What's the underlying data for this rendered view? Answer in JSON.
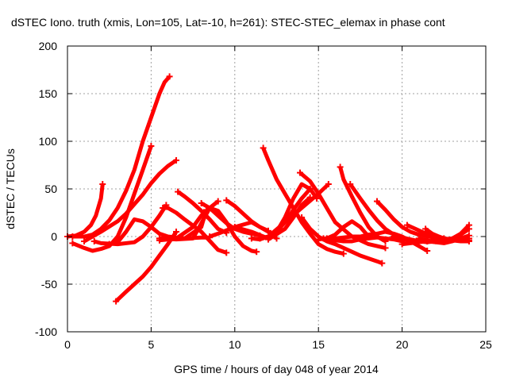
{
  "chart_data": {
    "type": "line",
    "title": "dSTEC Iono. truth (xmis, Lon=105, Lat=-10, h=261): STEC-STEC_elemax in phase cont",
    "xlabel": "GPS time / hours of day 048 of year 2014",
    "ylabel": "dSTEC  / TECUs",
    "xlim": [
      0,
      25
    ],
    "ylim": [
      -100,
      200
    ],
    "xticks": [
      "0",
      "5",
      "10",
      "15",
      "20",
      "25"
    ],
    "yticks": [
      "-100",
      "-50",
      "0",
      "50",
      "100",
      "150",
      "200"
    ],
    "grid": true,
    "line_color": "#ff0000",
    "series": [
      {
        "x": [
          0.0,
          0.5,
          1.0,
          1.4,
          1.7,
          2.0,
          2.1
        ],
        "y": [
          0,
          1,
          5,
          12,
          22,
          40,
          55
        ]
      },
      {
        "x": [
          0.3,
          1.0,
          1.5,
          2.0,
          2.5,
          3.0,
          3.5,
          4.0,
          4.5,
          5.0,
          5.5,
          5.8,
          6.1
        ],
        "y": [
          0,
          0,
          2,
          8,
          17,
          30,
          48,
          70,
          100,
          125,
          150,
          162,
          168
        ]
      },
      {
        "x": [
          0.3,
          1.0,
          1.5,
          2.0,
          2.5,
          3.0,
          3.5,
          4.0,
          4.5,
          5.0
        ],
        "y": [
          -7,
          -12,
          -15,
          -13,
          -10,
          0,
          20,
          45,
          70,
          95
        ]
      },
      {
        "x": [
          1.0,
          2.0,
          3.0,
          3.5,
          4.0,
          4.5,
          5.0,
          5.5,
          6.0,
          6.5
        ],
        "y": [
          -5,
          5,
          16,
          24,
          34,
          44,
          56,
          66,
          74,
          80
        ]
      },
      {
        "x": [
          1.6,
          2.0,
          3.0,
          4.0,
          4.5,
          5.0,
          5.5,
          5.9
        ],
        "y": [
          -5,
          -7,
          -8,
          -6,
          0,
          10,
          22,
          33
        ]
      },
      {
        "x": [
          2.9,
          3.5,
          4.0,
          4.5,
          5.0,
          5.5,
          6.0,
          6.5
        ],
        "y": [
          -68,
          -58,
          -50,
          -42,
          -32,
          -20,
          -8,
          5
        ]
      },
      {
        "x": [
          2.5,
          3.0,
          3.5,
          4.0,
          4.5,
          5.0,
          5.5,
          6.0,
          7.0,
          8.0,
          8.5
        ],
        "y": [
          -8,
          -6,
          5,
          18,
          16,
          10,
          3,
          0,
          -2,
          -1,
          -1
        ]
      },
      {
        "x": [
          5.7,
          6.0,
          6.5,
          7.0,
          8.0,
          9.0,
          9.5
        ],
        "y": [
          30,
          30,
          25,
          18,
          5,
          -14,
          -17
        ]
      },
      {
        "x": [
          6.6,
          7.0,
          7.5,
          8.0,
          8.5,
          9.0,
          9.5
        ],
        "y": [
          47,
          42,
          35,
          27,
          18,
          8,
          4
        ]
      },
      {
        "x": [
          5.5,
          6.0,
          7.0,
          8.0,
          8.3
        ],
        "y": [
          -4,
          -3,
          -2,
          10,
          28
        ]
      },
      {
        "x": [
          5.5,
          6.5,
          7.5,
          8.0,
          8.5,
          9.0,
          9.5,
          10.0,
          10.5,
          11.0,
          11.3
        ],
        "y": [
          -2,
          -2,
          10,
          22,
          30,
          27,
          15,
          0,
          -10,
          -15,
          -16
        ]
      },
      {
        "x": [
          5.5,
          6.5,
          7.5,
          8.5,
          9.0
        ],
        "y": [
          -2,
          -3,
          -2,
          30,
          37
        ]
      },
      {
        "x": [
          8.0,
          8.5,
          9.0,
          9.5,
          10.0,
          10.5,
          11.0,
          11.5
        ],
        "y": [
          35,
          30,
          22,
          14,
          8,
          5,
          3,
          1
        ]
      },
      {
        "x": [
          9.5,
          10.0,
          10.5,
          11.0,
          11.5,
          12.0
        ],
        "y": [
          38,
          32,
          24,
          16,
          10,
          6
        ]
      },
      {
        "x": [
          8.5,
          9.0,
          10.0,
          11.0,
          12.0,
          12.5
        ],
        "y": [
          0,
          3,
          10,
          15,
          5,
          -2
        ]
      },
      {
        "x": [
          11.7,
          12.0,
          12.5,
          13.0,
          13.5,
          14.0,
          14.5,
          15.0,
          15.5,
          16.0,
          16.5
        ],
        "y": [
          93,
          80,
          60,
          45,
          30,
          15,
          3,
          -8,
          -13,
          -16,
          -18
        ]
      },
      {
        "x": [
          10.0,
          11.0,
          12.0,
          12.5,
          13.0,
          13.5,
          14.0,
          14.5,
          14.9
        ],
        "y": [
          10,
          5,
          -2,
          5,
          20,
          40,
          55,
          50,
          40
        ]
      },
      {
        "x": [
          11.5,
          12.0,
          12.5,
          13.0,
          13.5,
          14.0,
          14.5
        ],
        "y": [
          -2,
          0,
          5,
          15,
          28,
          40,
          50
        ]
      },
      {
        "x": [
          11.0,
          11.5,
          12.0,
          13.0,
          14.0,
          15.0,
          15.6
        ],
        "y": [
          -2,
          -3,
          0,
          15,
          30,
          45,
          55
        ]
      },
      {
        "x": [
          12.0,
          13.0,
          13.5,
          14.0,
          14.5
        ],
        "y": [
          -3,
          8,
          20,
          33,
          41
        ]
      },
      {
        "x": [
          13.9,
          14.5,
          15.0,
          15.5,
          16.0,
          17.0,
          18.0,
          19.0
        ],
        "y": [
          67,
          58,
          45,
          30,
          15,
          0,
          -8,
          -12
        ]
      },
      {
        "x": [
          14.0,
          14.5,
          15.0,
          15.5,
          16.0,
          16.5,
          17.0,
          17.5,
          18.0,
          18.5,
          18.8
        ],
        "y": [
          20,
          8,
          0,
          -5,
          -8,
          -12,
          -16,
          -20,
          -23,
          -26,
          -28
        ]
      },
      {
        "x": [
          15.5,
          16.0,
          16.5,
          17.0,
          17.5,
          18.0,
          18.5,
          19.0,
          19.5,
          20.0,
          20.5,
          21.0,
          21.5
        ],
        "y": [
          -2,
          -2,
          -1,
          0,
          0,
          2,
          3,
          5,
          3,
          0,
          -5,
          -10,
          -15
        ]
      },
      {
        "x": [
          15.3,
          15.5,
          16.0,
          16.5,
          17.0,
          17.5,
          18.0,
          18.5,
          19.0,
          19.5,
          20.0
        ],
        "y": [
          -2,
          -3,
          -4,
          -5,
          -5,
          -3,
          -2,
          -1,
          -2,
          -3,
          -5
        ]
      },
      {
        "x": [
          16.3,
          16.5,
          17.0,
          17.5,
          18.0,
          18.5,
          19.0
        ],
        "y": [
          73,
          60,
          42,
          25,
          10,
          0,
          -5
        ]
      },
      {
        "x": [
          16.9,
          17.5,
          18.0,
          18.5,
          19.0,
          19.5,
          20.0,
          20.5
        ],
        "y": [
          55,
          40,
          28,
          17,
          8,
          2,
          -2,
          -5
        ]
      },
      {
        "x": [
          15.0,
          15.5,
          16.0,
          16.5,
          17.0,
          17.5,
          18.0
        ],
        "y": [
          -3,
          -2,
          2,
          10,
          16,
          10,
          0
        ]
      },
      {
        "x": [
          18.5,
          19.0,
          19.5,
          20.0,
          20.5,
          21.0,
          21.5,
          22.0,
          22.5
        ],
        "y": [
          37,
          28,
          18,
          10,
          5,
          2,
          0,
          -1,
          -2
        ]
      },
      {
        "x": [
          20.3,
          20.8,
          21.3,
          22.0,
          22.5,
          23.0,
          23.5,
          24.0
        ],
        "y": [
          12,
          8,
          4,
          0,
          -2,
          -3,
          -4,
          -4
        ]
      },
      {
        "x": [
          21.0,
          21.5,
          22.0,
          22.5,
          23.0,
          23.5,
          24.0
        ],
        "y": [
          -2,
          -4,
          -6,
          -7,
          -5,
          -2,
          1
        ]
      },
      {
        "x": [
          21.4,
          21.8,
          22.2,
          22.5,
          23.0,
          23.5,
          24.0
        ],
        "y": [
          8,
          3,
          0,
          -2,
          -4,
          -5,
          -5
        ]
      },
      {
        "x": [
          21.5,
          22.0,
          22.5,
          23.0,
          23.5,
          24.0
        ],
        "y": [
          -5,
          -6,
          -5,
          -2,
          2,
          8
        ]
      },
      {
        "x": [
          20.0,
          21.0,
          22.0,
          23.0,
          23.5,
          24.0
        ],
        "y": [
          -8,
          -6,
          -4,
          -2,
          3,
          12
        ]
      },
      {
        "x": [
          19.5,
          20.0,
          20.5,
          21.0,
          21.5,
          22.0,
          22.5,
          23.0,
          24.0
        ],
        "y": [
          0,
          -1,
          -3,
          -5,
          -6,
          -5,
          -4,
          -3,
          -2
        ]
      }
    ]
  }
}
